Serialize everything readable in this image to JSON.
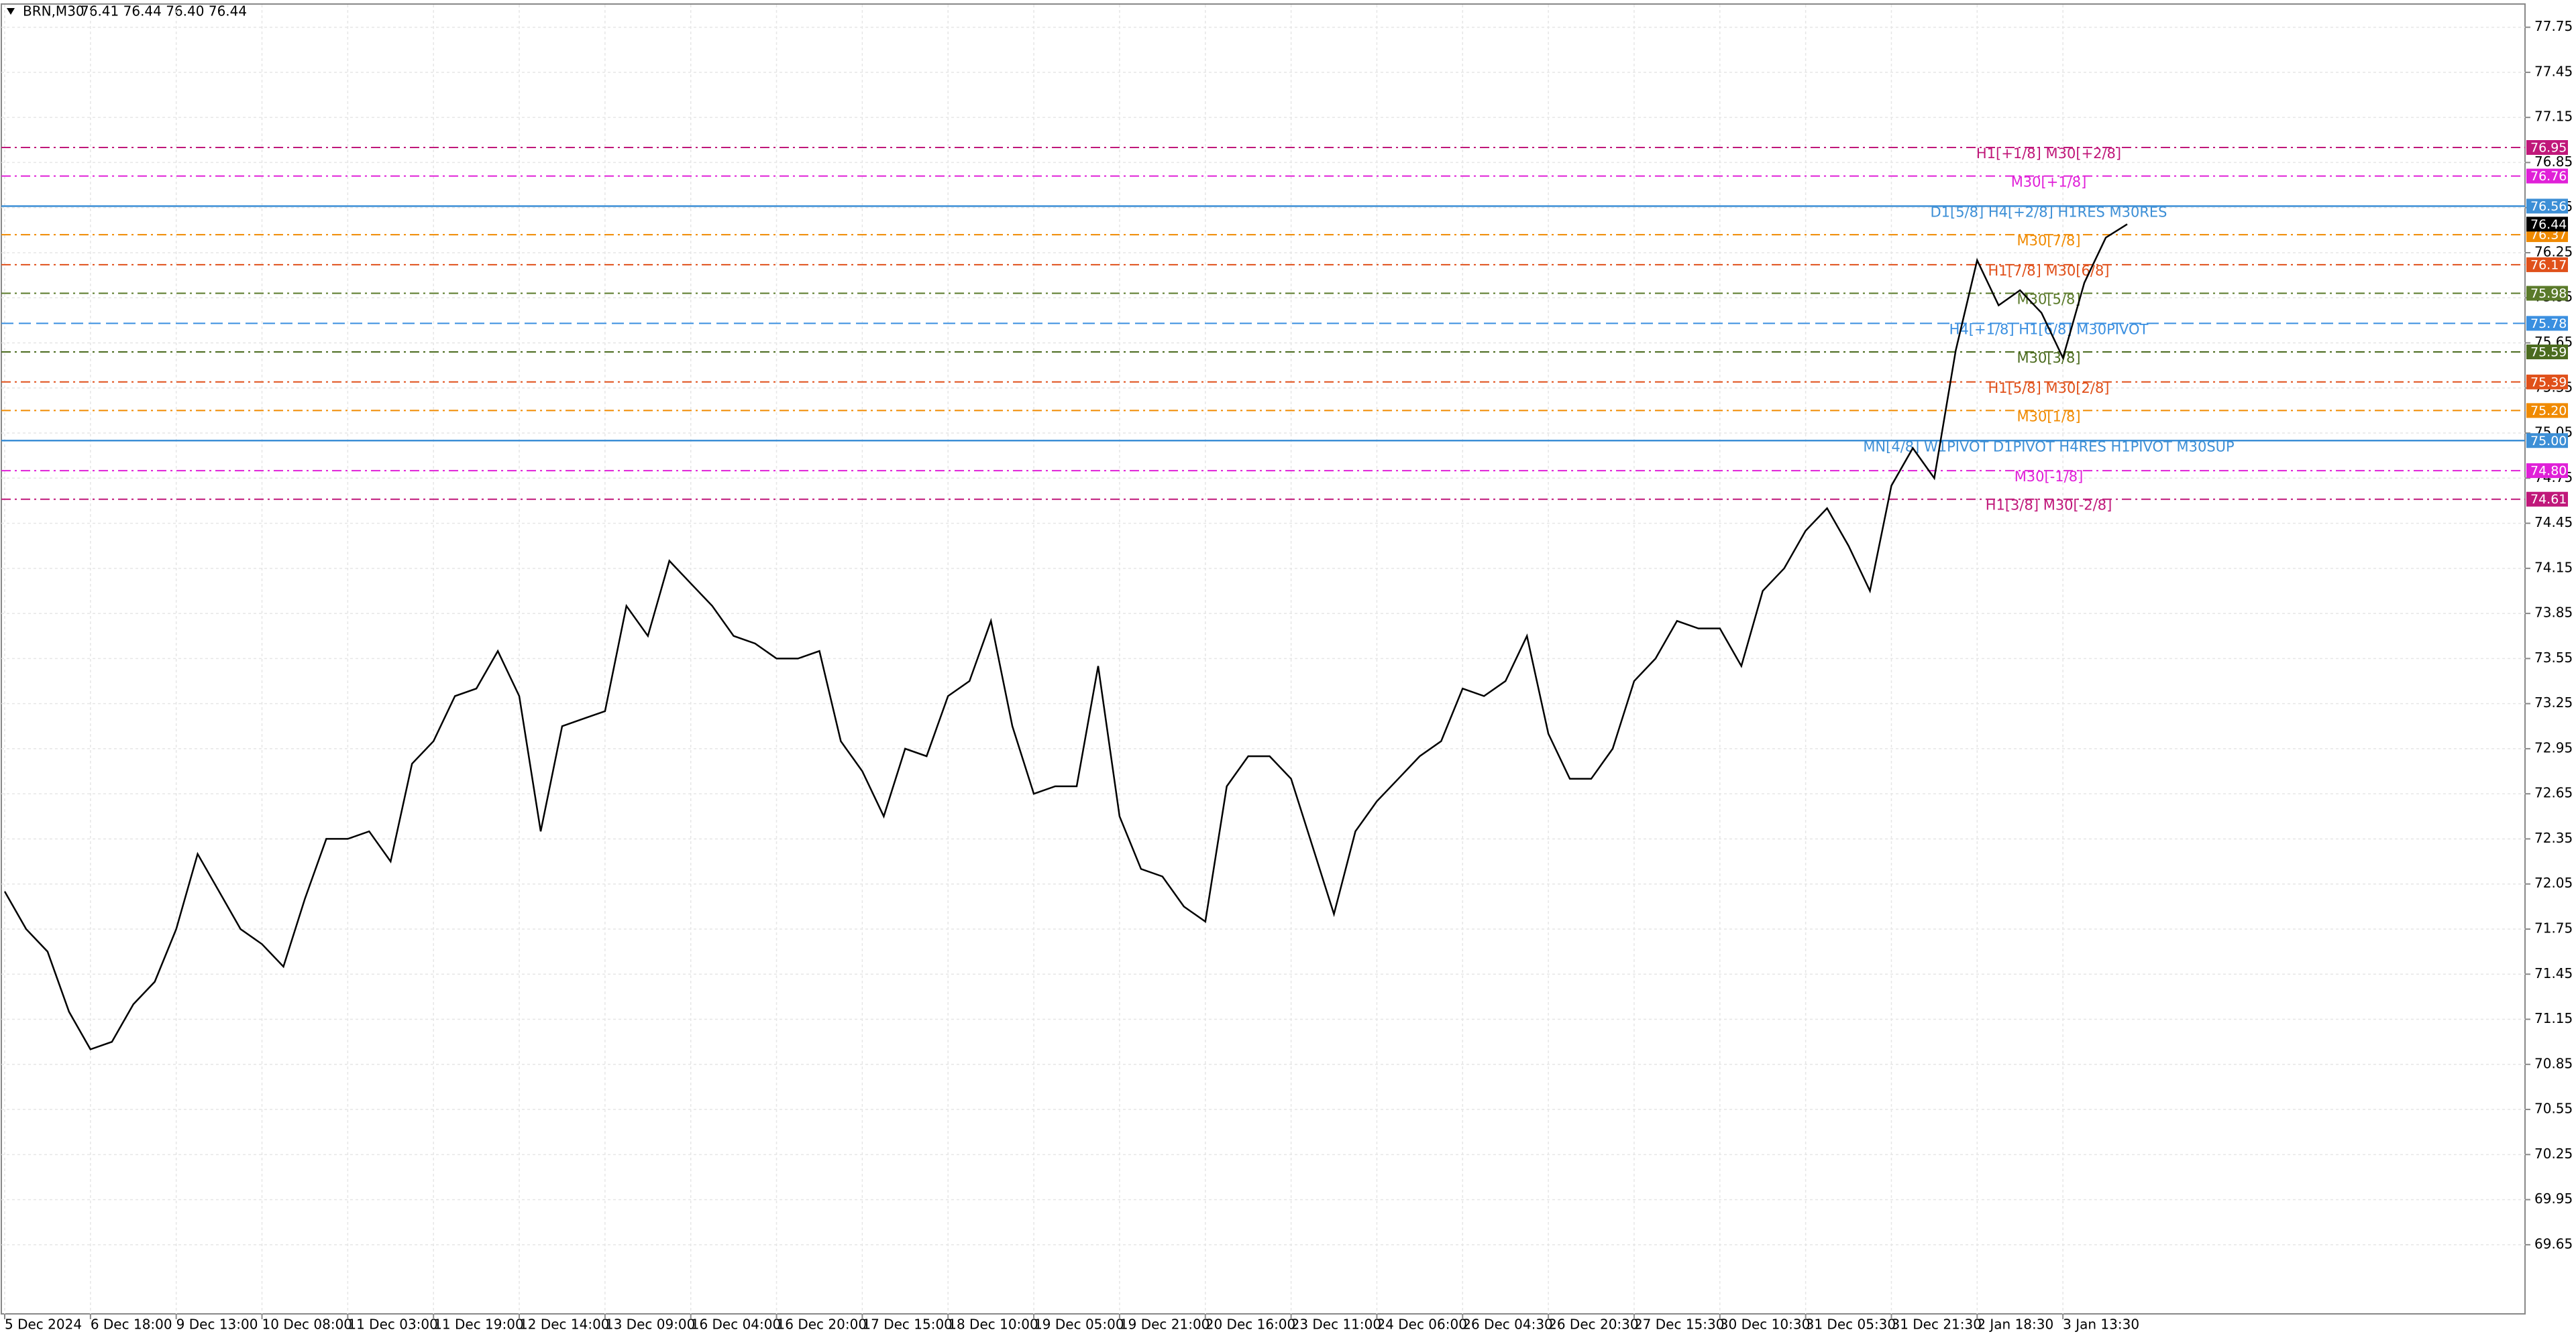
{
  "chart_data": {
    "type": "line",
    "symbol": "BRN,M30",
    "quote": "76.41 76.44 76.40 76.44",
    "categories": [
      "5 Dec 2024",
      null,
      null,
      null,
      "6 Dec 18:00",
      null,
      null,
      null,
      "9 Dec 13:00",
      null,
      null,
      null,
      "10 Dec 08:00",
      null,
      null,
      null,
      "11 Dec 03:00",
      null,
      null,
      null,
      "11 Dec 19:00",
      null,
      null,
      null,
      "12 Dec 14:00",
      null,
      null,
      null,
      "13 Dec 09:00",
      null,
      null,
      null,
      "16 Dec 04:00",
      null,
      null,
      null,
      "16 Dec 20:00",
      null,
      null,
      null,
      "17 Dec 15:00",
      null,
      null,
      null,
      "18 Dec 10:00",
      null,
      null,
      null,
      "19 Dec 05:00",
      null,
      null,
      null,
      "19 Dec 21:00",
      null,
      null,
      null,
      "20 Dec 16:00",
      null,
      null,
      null,
      "23 Dec 11:00",
      null,
      null,
      null,
      "24 Dec 06:00",
      null,
      null,
      null,
      "26 Dec 04:30",
      null,
      null,
      null,
      "26 Dec 20:30",
      null,
      null,
      null,
      "27 Dec 15:30",
      null,
      null,
      null,
      "30 Dec 10:30",
      null,
      null,
      null,
      "31 Dec 05:30",
      null,
      null,
      null,
      "31 Dec 21:30",
      null,
      null,
      null,
      "2 Jan 18:30",
      null,
      null,
      null,
      "3 Jan 13:30",
      null,
      null,
      null
    ],
    "values": [
      72.0,
      71.75,
      71.6,
      71.2,
      70.95,
      71.0,
      71.25,
      71.4,
      71.75,
      72.25,
      72.0,
      71.75,
      71.65,
      71.5,
      71.95,
      72.35,
      72.35,
      72.4,
      72.2,
      72.85,
      73.0,
      73.3,
      73.35,
      73.6,
      73.3,
      72.4,
      73.1,
      73.15,
      73.2,
      73.9,
      73.7,
      74.2,
      74.05,
      73.9,
      73.7,
      73.65,
      73.55,
      73.55,
      73.6,
      73.0,
      72.8,
      72.5,
      72.95,
      72.9,
      73.3,
      73.4,
      73.8,
      73.1,
      72.65,
      72.7,
      72.7,
      73.5,
      72.5,
      72.15,
      72.1,
      71.9,
      71.8,
      72.7,
      72.9,
      72.9,
      72.75,
      72.3,
      71.85,
      72.4,
      72.6,
      72.75,
      72.9,
      73.0,
      73.35,
      73.3,
      73.4,
      73.7,
      73.05,
      72.75,
      72.75,
      72.95,
      73.4,
      73.55,
      73.8,
      73.75,
      73.75,
      73.5,
      74.0,
      74.15,
      74.4,
      74.55,
      74.3,
      74.0,
      74.7,
      74.95,
      74.75,
      75.6,
      76.2,
      75.9,
      76.0,
      75.85,
      75.55,
      76.05,
      76.35,
      76.44
    ],
    "color": "#000000",
    "ylim": [
      69.19,
      77.9
    ],
    "yticks": [
      77.75,
      77.45,
      77.15,
      76.85,
      76.55,
      76.25,
      75.95,
      75.65,
      75.35,
      75.05,
      74.75,
      74.45,
      74.15,
      73.85,
      73.55,
      73.25,
      72.95,
      72.65,
      72.35,
      72.05,
      71.75,
      71.45,
      71.15,
      70.85,
      70.55,
      70.25,
      69.95,
      69.65
    ],
    "grid": true,
    "last_price": 76.44,
    "levels": [
      {
        "label": "H1[+1/8] M30[+2/8]",
        "price": 76.95,
        "color": "#c0187a",
        "dash": "dashdot"
      },
      {
        "label": "M30[+1/8]",
        "price": 76.76,
        "color": "#e020d8",
        "dash": "dashdot"
      },
      {
        "label": "D1[5/8] H4[+2/8] H1RES M30RES",
        "price": 76.56,
        "color": "#3d8fd6",
        "dash": "solid"
      },
      {
        "label": "M30[7/8]",
        "price": 76.37,
        "color": "#f08a00",
        "dash": "dashdot"
      },
      {
        "label": "H1[7/8] M30[6/8]",
        "price": 76.17,
        "color": "#e0501a",
        "dash": "dashdot"
      },
      {
        "label": "M30[5/8]",
        "price": 75.98,
        "color": "#5a7a2a",
        "dash": "dashdot"
      },
      {
        "label": "H4[+1/8] H1[6/8] M30PIVOT",
        "price": 75.78,
        "color": "#3a8fe0",
        "dash": "dashed"
      },
      {
        "label": "M30[3/8]",
        "price": 75.59,
        "color": "#4b6b1f",
        "dash": "dashdot"
      },
      {
        "label": "H1[5/8] M30[2/8]",
        "price": 75.39,
        "color": "#e0501a",
        "dash": "dashdot"
      },
      {
        "label": "M30[1/8]",
        "price": {
          "value": 75.2,
          "label": "75.20"
        },
        "color": "#f08a00",
        "dash": "dashdot"
      },
      {
        "label": "MN[4/8] W1PIVOT D1PIVOT H4RES H1PIVOT M30SUP",
        "price": {
          "value": 75,
          "label": "75.00"
        },
        "color": "#3d8fd6",
        "dash": "solid"
      },
      {
        "label": "M30[-1/8]",
        "price": {
          "value": 74.8,
          "label": "74.80"
        },
        "color": "#e020d8",
        "dash": "dashdot"
      },
      {
        "label": "H1[3/8] M30[-2/8]",
        "price": 74.61,
        "color": "#c0187a",
        "dash": "dashdot"
      }
    ]
  }
}
